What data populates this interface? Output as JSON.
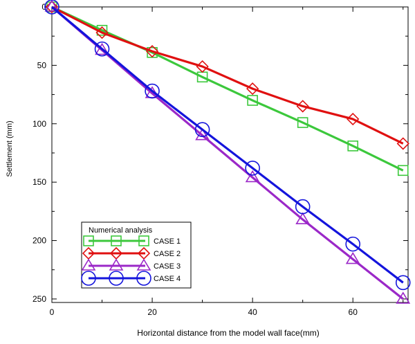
{
  "chart_data": {
    "type": "line",
    "xlabel": "Horizontal distance from the model wall face(mm)",
    "ylabel": "Settlement (mm)",
    "xlim": [
      0,
      71
    ],
    "ylim": [
      0,
      253
    ],
    "y_inverted": true,
    "x_ticks": [
      0,
      20,
      40,
      60
    ],
    "y_ticks": [
      0,
      50,
      100,
      150,
      200,
      250
    ],
    "x_minor_ticks": [
      10,
      30,
      50,
      70
    ],
    "y_minor_ticks": [
      25,
      75,
      125,
      175,
      225
    ],
    "grid": false,
    "legend": {
      "title": "Numerical analysis",
      "position": "lower-left"
    },
    "x": [
      0,
      10,
      20,
      30,
      40,
      50,
      60,
      70
    ],
    "series": [
      {
        "name": "CASE 1",
        "color": "#3cc83c",
        "marker": "square",
        "values": [
          0,
          20,
          39,
          60,
          80,
          99,
          119,
          140
        ]
      },
      {
        "name": "CASE 2",
        "color": "#e01010",
        "marker": "diamond",
        "values": [
          0,
          22,
          38,
          51,
          70,
          85,
          96,
          117
        ]
      },
      {
        "name": "CASE 3",
        "color": "#9b28c8",
        "marker": "triangle",
        "values": [
          0,
          37,
          74,
          110,
          146,
          182,
          216,
          250
        ]
      },
      {
        "name": "CASE 4",
        "color": "#1414dc",
        "marker": "circle",
        "values": [
          0,
          36,
          72,
          105,
          138,
          171,
          203,
          236
        ]
      }
    ]
  }
}
